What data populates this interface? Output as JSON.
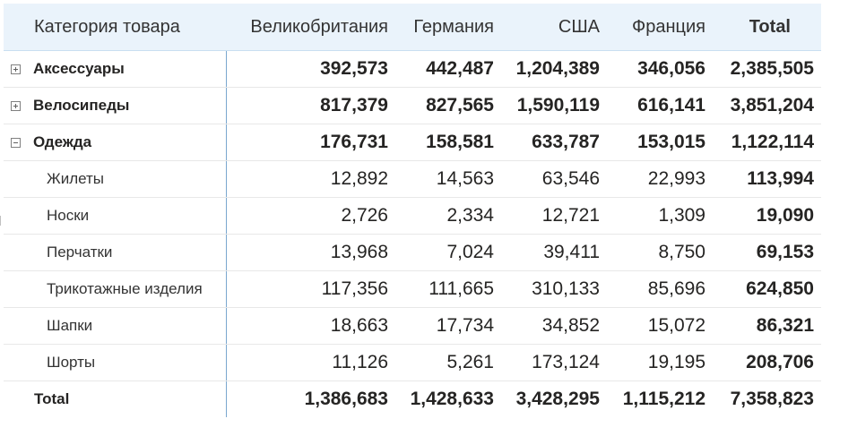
{
  "matrix": {
    "row_header_label": "Категория товара",
    "columns": [
      "Великобритания",
      "Германия",
      "США",
      "Франция",
      "Total"
    ],
    "rows": [
      {
        "label": "Аксессуары",
        "expanded": false,
        "values": [
          "392,573",
          "442,487",
          "1,204,389",
          "346,056",
          "2,385,505"
        ]
      },
      {
        "label": "Велосипеды",
        "expanded": false,
        "values": [
          "817,379",
          "827,565",
          "1,590,119",
          "616,141",
          "3,851,204"
        ]
      },
      {
        "label": "Одежда",
        "expanded": true,
        "values": [
          "176,731",
          "158,581",
          "633,787",
          "153,015",
          "1,122,114"
        ]
      }
    ],
    "children": [
      {
        "label": "Жилеты",
        "values": [
          "12,892",
          "14,563",
          "63,546",
          "22,993",
          "113,994"
        ]
      },
      {
        "label": "Носки",
        "values": [
          "2,726",
          "2,334",
          "12,721",
          "1,309",
          "19,090"
        ]
      },
      {
        "label": "Перчатки",
        "values": [
          "13,968",
          "7,024",
          "39,411",
          "8,750",
          "69,153"
        ]
      },
      {
        "label": "Трикотажные изделия",
        "values": [
          "117,356",
          "111,665",
          "310,133",
          "85,696",
          "624,850"
        ]
      },
      {
        "label": "Шапки",
        "values": [
          "18,663",
          "17,734",
          "34,852",
          "15,072",
          "86,321"
        ]
      },
      {
        "label": "Шорты",
        "values": [
          "11,126",
          "5,261",
          "173,124",
          "19,195",
          "208,706"
        ]
      }
    ],
    "total": {
      "label": "Total",
      "values": [
        "1,386,683",
        "1,428,633",
        "3,428,295",
        "1,115,212",
        "7,358,823"
      ]
    }
  },
  "icons": {
    "collapsed": "expand-plus-icon",
    "expanded": "collapse-minus-icon"
  },
  "colors": {
    "header_bg": "#eaf3fb",
    "divider": "#7aa7cf"
  }
}
